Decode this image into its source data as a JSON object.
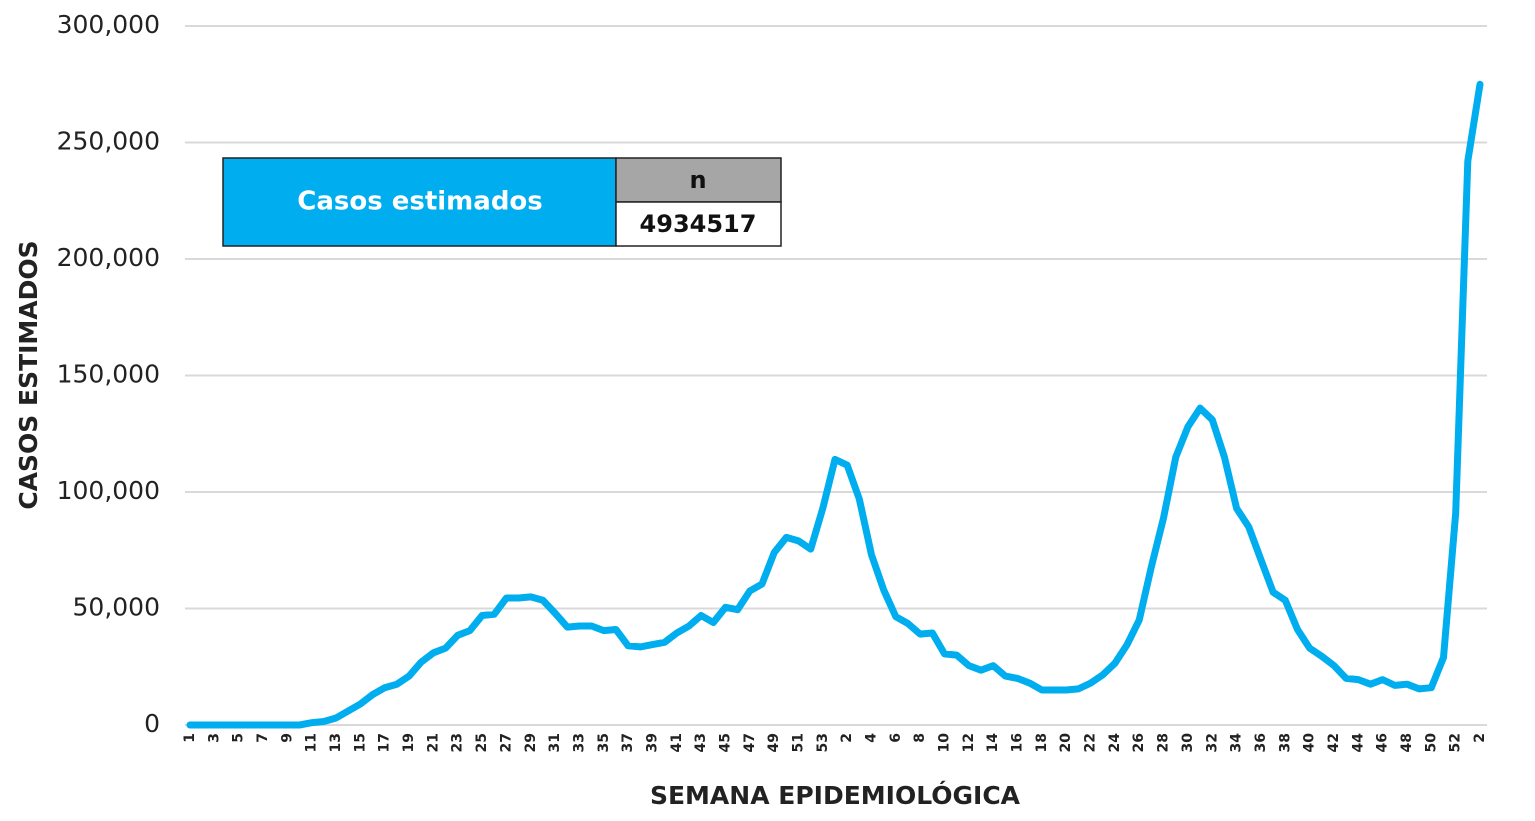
{
  "chart_data": {
    "type": "line",
    "x_label": "SEMANA EPIDEMIOLÓGICA",
    "y_label": "CASOS ESTIMADOS",
    "categories": [
      "1",
      null,
      "3",
      null,
      "5",
      null,
      "7",
      null,
      "9",
      null,
      "11",
      null,
      "13",
      null,
      "15",
      null,
      "17",
      null,
      "19",
      null,
      "21",
      null,
      "23",
      null,
      "25",
      null,
      "27",
      null,
      "29",
      null,
      "31",
      null,
      "33",
      null,
      "35",
      null,
      "37",
      null,
      "39",
      null,
      "41",
      null,
      "43",
      null,
      "45",
      null,
      "47",
      null,
      "49",
      null,
      "51",
      null,
      "53",
      null,
      "2",
      null,
      "4",
      null,
      "6",
      null,
      "8",
      null,
      "10",
      null,
      "12",
      null,
      "14",
      null,
      "16",
      null,
      "18",
      null,
      "20",
      null,
      "22",
      null,
      "24",
      null,
      "26",
      null,
      "28",
      null,
      "30",
      null,
      "32",
      null,
      "34",
      null,
      "36",
      null,
      "38",
      null,
      "40",
      null,
      "42",
      null,
      "44",
      null,
      "46",
      null,
      "48",
      null,
      "50",
      null,
      "52",
      null,
      "2"
    ],
    "series": [
      {
        "name": "Casos estimados",
        "color": "#00aeef",
        "values": [
          0,
          0,
          0,
          0,
          0,
          0,
          0,
          0,
          0,
          0,
          1000,
          1500,
          3000,
          6000,
          9000,
          13000,
          16000,
          17500,
          21000,
          27000,
          31000,
          33000,
          38500,
          40500,
          47000,
          47500,
          54500,
          54500,
          55000,
          53500,
          48000,
          42000,
          42500,
          42500,
          40500,
          41000,
          34000,
          33500,
          34500,
          35500,
          39500,
          42500,
          47000,
          44000,
          50500,
          49500,
          57500,
          60500,
          74000,
          80500,
          79000,
          75500,
          93000,
          114000,
          111500,
          97000,
          73000,
          58000,
          46500,
          43500,
          39000,
          39500,
          30500,
          30000,
          25500,
          23500,
          25500,
          21000,
          20000,
          18000,
          15000,
          15000,
          15000,
          15500,
          18000,
          21500,
          26500,
          34500,
          45000,
          68000,
          89000,
          115000,
          128000,
          136000,
          131000,
          115000,
          93000,
          85000,
          71000,
          57000,
          53500,
          41000,
          33000,
          29500,
          25500,
          20000,
          19500,
          17500,
          19500,
          17000,
          17500,
          15500,
          16000,
          29000,
          91000,
          242000,
          275000
        ]
      }
    ],
    "ylim": [
      0,
      300000
    ],
    "yticks": [
      0,
      {
        "value": 50000,
        "label": "50,000"
      },
      {
        "value": 100000,
        "label": "100,000"
      },
      {
        "value": 150000,
        "label": "150,000"
      },
      {
        "value": 200000,
        "label": "200,000"
      },
      {
        "value": 250000,
        "label": "250,000"
      },
      {
        "value": 300000,
        "label": "300,000"
      }
    ],
    "grid": true,
    "table": {
      "label": "Casos estimados",
      "header": "n",
      "value": "4934517"
    }
  }
}
